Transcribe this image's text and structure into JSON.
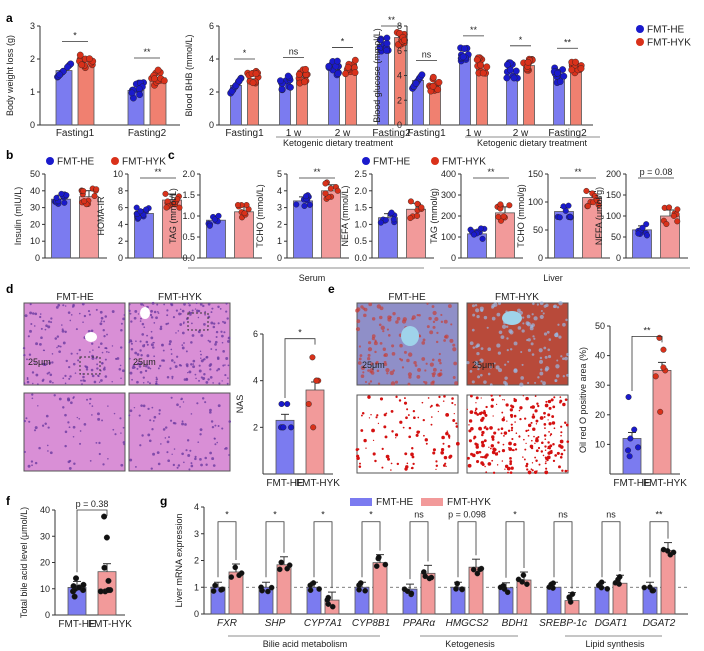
{
  "colors": {
    "he_bar": "#7b7bf0",
    "he_dot": "#1a1acc",
    "hyk_bar": "#f08070",
    "hyk_dot": "#d9311a",
    "hyk_bar_light": "#f29a9a",
    "black": "#111111"
  },
  "legend": {
    "he": "FMT-HE",
    "hyk": "FMT-HYK"
  },
  "panels": {
    "a": "a",
    "b": "b",
    "c": "c",
    "d": "d",
    "e": "e",
    "f": "f",
    "g": "g"
  },
  "groups": {
    "keto": "Ketogenic dietary treatment",
    "serum": "Serum",
    "liver": "Liver",
    "bile": "Bilie acid metabolism",
    "ketogenesis": "Ketogenesis",
    "lipid": "Lipid synthesis"
  },
  "histology": {
    "d_titles": [
      "FMT-HE",
      "FMT-HYK"
    ],
    "e_titles": [
      "FMT-HE",
      "FMT-HYK"
    ],
    "scale": "25μm"
  },
  "chart_data": [
    {
      "id": "a1",
      "type": "bar",
      "ylabel": "Body weight loss (g)",
      "ylim": [
        0,
        3
      ],
      "yticks": [
        0,
        1,
        2,
        3
      ],
      "categories": [
        "Fasting1",
        "Fasting2"
      ],
      "series": [
        {
          "name": "FMT-HE",
          "values": [
            1.65,
            1.05
          ]
        },
        {
          "name": "FMT-HYK",
          "values": [
            1.93,
            1.43
          ]
        }
      ],
      "sig": [
        "*",
        "**"
      ]
    },
    {
      "id": "a2",
      "type": "bar",
      "ylabel": "Blood BHB (mmol/L)",
      "ylim": [
        0,
        6
      ],
      "yticks": [
        0,
        2,
        4,
        6
      ],
      "categories": [
        "Fasting1",
        "1 w",
        "2 w",
        "Fasting2"
      ],
      "series": [
        {
          "name": "FMT-HE",
          "values": [
            2.4,
            2.6,
            3.4,
            4.9
          ]
        },
        {
          "name": "FMT-HYK",
          "values": [
            2.8,
            2.9,
            3.5,
            5.3
          ]
        }
      ],
      "sig": [
        "*",
        "ns",
        "*",
        "**"
      ]
    },
    {
      "id": "a3",
      "type": "bar",
      "ylabel": "Blood glucose (mmol/L)",
      "ylim": [
        0,
        8
      ],
      "yticks": [
        0,
        2,
        4,
        6,
        8
      ],
      "categories": [
        "Fasting1",
        "1 w",
        "2 w",
        "Fasting2"
      ],
      "series": [
        {
          "name": "FMT-HE",
          "values": [
            3.6,
            5.6,
            4.4,
            4.0
          ]
        },
        {
          "name": "FMT-HYK",
          "values": [
            3.3,
            4.8,
            4.8,
            4.6
          ]
        }
      ],
      "sig": [
        "ns",
        "**",
        "*",
        "**"
      ]
    },
    {
      "id": "b1",
      "type": "bar",
      "ylabel": "Insulin (mIU/L)",
      "ylim": [
        0,
        50
      ],
      "yticks": [
        0,
        10,
        20,
        30,
        40,
        50
      ],
      "categories": [
        "FMT-HE",
        "FMT-HYK"
      ],
      "values": [
        35,
        36.5
      ],
      "sig": ""
    },
    {
      "id": "b2",
      "type": "bar",
      "ylabel": "HOMA-IR",
      "ylim": [
        0,
        10
      ],
      "yticks": [
        0,
        2,
        4,
        6,
        8,
        10
      ],
      "categories": [
        "FMT-HE",
        "FMT-HYK"
      ],
      "values": [
        5.3,
        6.9
      ],
      "sig": "**"
    },
    {
      "id": "c1",
      "type": "bar",
      "ylabel": "TAG (mmol/L)",
      "ylim": [
        0,
        2
      ],
      "yticks": [
        "0.0",
        "0.5",
        "1.0",
        "1.5",
        "2.0"
      ],
      "categories": [
        "FMT-HE",
        "FMT-HYK"
      ],
      "values": [
        0.9,
        1.1
      ],
      "sig": ""
    },
    {
      "id": "c2",
      "type": "bar",
      "ylabel": "TCHO (mmol/L)",
      "ylim": [
        0,
        5
      ],
      "yticks": [
        0,
        1,
        2,
        3,
        4,
        5
      ],
      "categories": [
        "FMT-HE",
        "FMT-HYK"
      ],
      "values": [
        3.4,
        4.0
      ],
      "sig": "**"
    },
    {
      "id": "c3",
      "type": "bar",
      "ylabel": "NEFA (mmol/L)",
      "ylim": [
        0,
        2.5
      ],
      "yticks": [
        "0.0",
        "0.5",
        "1.0",
        "1.5",
        "2.0",
        "2.5"
      ],
      "categories": [
        "FMT-HE",
        "FMT-HYK"
      ],
      "values": [
        1.2,
        1.45
      ],
      "sig": ""
    },
    {
      "id": "c4",
      "type": "bar",
      "ylabel": "TAG (mmol/g)",
      "ylim": [
        0,
        400
      ],
      "yticks": [
        0,
        100,
        200,
        300,
        400
      ],
      "categories": [
        "FMT-HE",
        "FMT-HYK"
      ],
      "values": [
        115,
        215
      ],
      "sig": "**"
    },
    {
      "id": "c5",
      "type": "bar",
      "ylabel": "TCHO (mmol/g)",
      "ylim": [
        0,
        150
      ],
      "yticks": [
        0,
        50,
        100,
        150
      ],
      "categories": [
        "FMT-HE",
        "FMT-HYK"
      ],
      "values": [
        83,
        108
      ],
      "sig": "**"
    },
    {
      "id": "c6",
      "type": "bar",
      "ylabel": "NFFA (μmol/g)",
      "ylim": [
        0,
        200
      ],
      "yticks": [
        0,
        50,
        100,
        150,
        200
      ],
      "categories": [
        "FMT-HE",
        "FMT-HYK"
      ],
      "values": [
        67,
        100
      ],
      "sig": "p = 0.08"
    },
    {
      "id": "d",
      "type": "bar",
      "ylabel": "NAS",
      "ylim": [
        0,
        6
      ],
      "yticks": [
        2,
        4,
        6
      ],
      "categories": [
        "FMT-HE",
        "FMT-HYK"
      ],
      "values": [
        2.3,
        3.6
      ],
      "points": [
        [
          2,
          2,
          2,
          2,
          3,
          3
        ],
        [
          2,
          3,
          4,
          4,
          4,
          5
        ]
      ],
      "sig": "*"
    },
    {
      "id": "e",
      "type": "bar",
      "ylabel": "Oil red O positive area (%)",
      "ylim": [
        0,
        50
      ],
      "yticks": [
        10,
        20,
        30,
        40,
        50
      ],
      "categories": [
        "FMT-HE",
        "FMT-HYK"
      ],
      "values": [
        12,
        35
      ],
      "points": [
        [
          6,
          8,
          9,
          12,
          15,
          26
        ],
        [
          21,
          33,
          35,
          36,
          42,
          46
        ]
      ],
      "sig": "**"
    },
    {
      "id": "f",
      "type": "bar",
      "ylabel": "Total bile acid level (μmol/L)",
      "ylim": [
        0,
        40
      ],
      "yticks": [
        0,
        10,
        20,
        30,
        40
      ],
      "categories": [
        "FMT-HE",
        "FMT-HYK"
      ],
      "values": [
        10.5,
        16.5
      ],
      "points": [
        [
          7,
          9,
          9.5,
          10,
          10.5,
          11,
          11.5,
          14
        ],
        [
          9,
          9,
          9.5,
          9.5,
          13,
          18,
          29.5,
          37.5
        ]
      ],
      "sig": "p = 0.38"
    },
    {
      "id": "g",
      "type": "bar",
      "ylabel": "Liver mRNA expression",
      "ylim": [
        0,
        4
      ],
      "yticks": [
        0,
        1,
        2,
        3,
        4
      ],
      "categories": [
        "FXR",
        "SHP",
        "CYP7A1",
        "CYP8B1",
        "PPARα",
        "HMGCS2",
        "BDH1",
        "SREBP-1c",
        "DGAT1",
        "DGAT2"
      ],
      "series": [
        {
          "name": "FMT-HE",
          "values": [
            1.0,
            1.0,
            1.0,
            1.0,
            0.93,
            1.0,
            0.98,
            1.0,
            1.0,
            1.0
          ]
        },
        {
          "name": "FMT-HYK",
          "values": [
            1.57,
            1.84,
            0.52,
            1.92,
            1.52,
            1.75,
            1.27,
            0.5,
            1.15,
            2.37
          ]
        }
      ],
      "sig": [
        "*",
        "*",
        "*",
        "*",
        "ns",
        "p = 0.098",
        "*",
        "ns",
        "ns",
        "**"
      ]
    }
  ]
}
